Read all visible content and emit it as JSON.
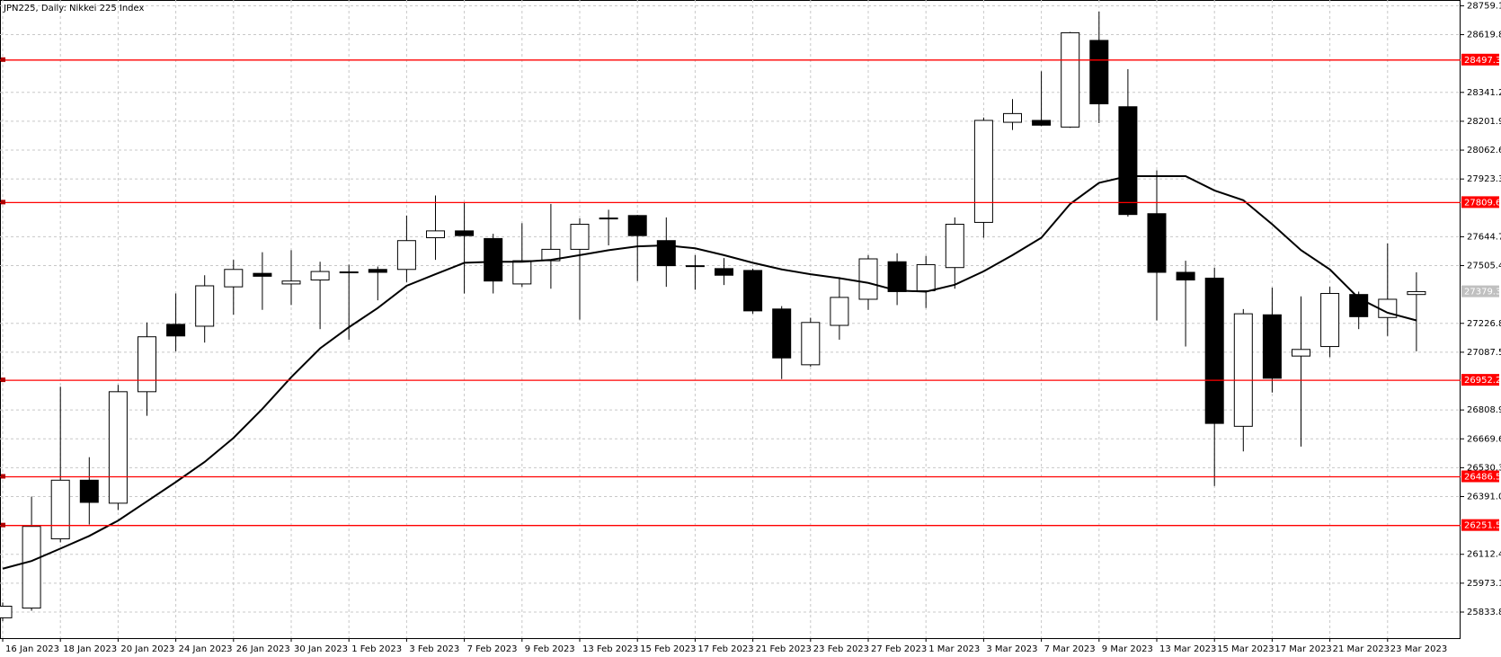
{
  "chart_data": {
    "type": "candlestick",
    "title": "JPN225, Daily:  Nikkei 225 Index",
    "categories": [
      "16 Jan 2023",
      null,
      "18 Jan 2023",
      null,
      "20 Jan 2023",
      null,
      "24 Jan 2023",
      null,
      "26 Jan 2023",
      null,
      "30 Jan 2023",
      null,
      "1 Feb 2023",
      null,
      "3 Feb 2023",
      null,
      "7 Feb 2023",
      null,
      "9 Feb 2023",
      null,
      "13 Feb 2023",
      null,
      "15 Feb 2023",
      null,
      "17 Feb 2023",
      null,
      "21 Feb 2023",
      null,
      "23 Feb 2023",
      null,
      "27 Feb 2023",
      null,
      "1 Mar 2023",
      null,
      "3 Mar 2023",
      null,
      "7 Mar 2023",
      null,
      "9 Mar 2023",
      null,
      "13 Mar 2023",
      null,
      "15 Mar 2023",
      null,
      "17 Mar 2023",
      null,
      "21 Mar 2023",
      null,
      "23 Mar 2023",
      null
    ],
    "open": [
      25806,
      25853,
      26187,
      26470,
      26359,
      26897,
      27222,
      27213,
      27403,
      27468,
      27417,
      27436,
      27473,
      27487,
      27487,
      27640,
      27673,
      27636,
      27417,
      27529,
      27584,
      27731,
      27747,
      27626,
      27505,
      27491,
      27482,
      27296,
      27027,
      27217,
      27343,
      27524,
      27384,
      27496,
      27714,
      28197,
      28206,
      28174,
      28592,
      28272,
      27756,
      27473,
      27445,
      26730,
      27268,
      27069,
      27115,
      27366,
      27255,
      27366
    ],
    "high": [
      25880,
      26391,
      26921,
      26581,
      26930,
      27231,
      27371,
      27459,
      27533,
      27570,
      27580,
      27524,
      27510,
      27501,
      27747,
      27844,
      27812,
      27659,
      27710,
      27803,
      27733,
      27775,
      27750,
      27738,
      27556,
      27542,
      27491,
      27310,
      27254,
      27450,
      27556,
      27565,
      27552,
      27738,
      28220,
      28309,
      28443,
      28633,
      28731,
      28453,
      27965,
      27529,
      27496,
      27296,
      27399,
      27357,
      27403,
      27380,
      27612,
      27473
    ],
    "low": [
      25790,
      25840,
      26170,
      26256,
      26326,
      26781,
      27092,
      27134,
      27269,
      27292,
      27315,
      27199,
      27148,
      27338,
      27426,
      27533,
      27371,
      27371,
      27403,
      27394,
      27245,
      27603,
      27431,
      27403,
      27389,
      27412,
      27273,
      26958,
      27018,
      27148,
      27292,
      27315,
      27301,
      27394,
      27640,
      28160,
      28179,
      28170,
      28193,
      27742,
      27241,
      27115,
      26442,
      26609,
      26893,
      26632,
      27064,
      27199,
      27166,
      27092
    ],
    "close": [
      25862,
      26247,
      26470,
      26363,
      26897,
      27162,
      27166,
      27408,
      27487,
      27454,
      27431,
      27477,
      27475,
      27473,
      27626,
      27673,
      27650,
      27431,
      27529,
      27584,
      27705,
      27735,
      27650,
      27505,
      27501,
      27459,
      27287,
      27060,
      27231,
      27352,
      27538,
      27380,
      27510,
      27705,
      28206,
      28239,
      28183,
      28629,
      28286,
      27752,
      27473,
      27436,
      26744,
      27273,
      26962,
      27101,
      27371,
      27259,
      27343,
      27380
    ],
    "up_color": "#ffffff",
    "down_color": "#000000",
    "series": [
      {
        "color": "#000000",
        "values": [
          26043,
          26080,
          26140,
          26201,
          26275,
          26368,
          26461,
          26558,
          26674,
          26814,
          26967,
          27106,
          27208,
          27301,
          27408,
          27464,
          27519,
          27524,
          27524,
          27533,
          27556,
          27580,
          27598,
          27603,
          27589,
          27556,
          27519,
          27487,
          27464,
          27445,
          27422,
          27385,
          27380,
          27413,
          27478,
          27556,
          27640,
          27803,
          27905,
          27937,
          27937,
          27937,
          27868,
          27821,
          27705,
          27580,
          27487,
          27348,
          27278,
          27241
        ]
      }
    ],
    "levels": [
      28497.3,
      27809.6,
      26952.2,
      26486.5,
      26251.5
    ],
    "level_color": "#ff0000",
    "last_price": 27379.3,
    "ylim": [
      25708,
      28787
    ],
    "yticks": [
      28759.1,
      28619.8,
      28341.2,
      28201.9,
      28062.6,
      27923.3,
      27644.7,
      27505.4,
      27226.8,
      27087.5,
      26808.9,
      26669.6,
      26530.3,
      {
        "value": 26391,
        "label": "26391.0"
      },
      26112.4,
      25973.1,
      25833.8
    ],
    "grid": true
  }
}
